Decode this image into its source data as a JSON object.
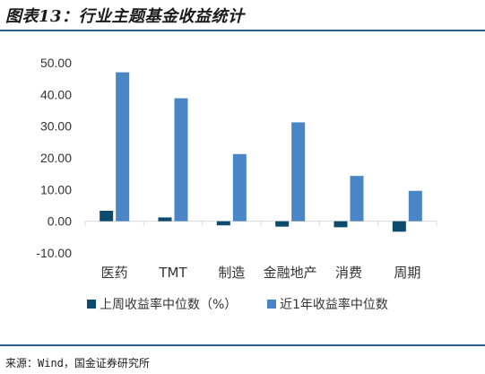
{
  "figure": {
    "title": "图表13：行业主题基金收益统计",
    "source": "来源：Wind，国金证券研究所"
  },
  "colors": {
    "series1": "#0c4a6e",
    "series2": "#4a86c6",
    "axis_text": "#333333",
    "grid": "#d9d9d9",
    "rule": "#2b5f8a"
  },
  "chart_data": {
    "type": "bar",
    "categories": [
      "医药",
      "TMT",
      "制造",
      "金融地产",
      "消费",
      "周期"
    ],
    "series": [
      {
        "name": "上周收益率中位数（%）",
        "values": [
          3.3,
          1.2,
          -1.3,
          -1.7,
          -1.9,
          -3.3
        ]
      },
      {
        "name": "近1年收益率中位数",
        "values": [
          47.0,
          38.8,
          21.2,
          31.2,
          14.3,
          9.6
        ]
      }
    ],
    "ylim": [
      -10,
      50
    ],
    "yticks": [
      "50.00",
      "40.00",
      "30.00",
      "20.00",
      "10.00",
      "0.00",
      "-10.00"
    ],
    "xlabel": "",
    "ylabel": "",
    "grid": false,
    "legend": "bottom"
  }
}
